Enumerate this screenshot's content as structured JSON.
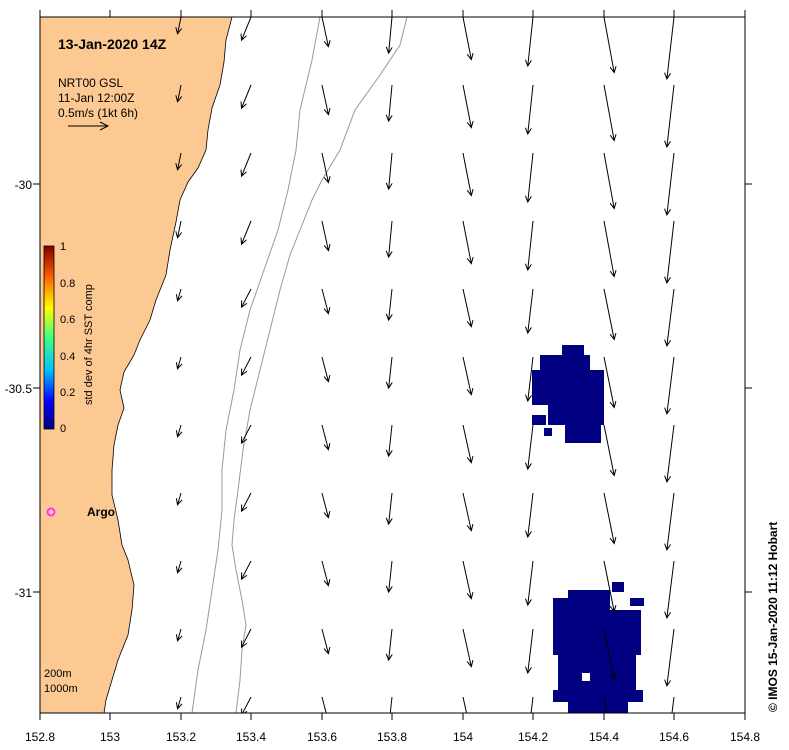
{
  "title": "13-Jan-2020 14Z",
  "legend": {
    "line1": "NRT00 GSL",
    "line2": "11-Jan 12:00Z",
    "scale_label": "0.5m/s (1kt 6h)"
  },
  "colorbar": {
    "label": "std dev of 4hr SST comp",
    "ticks": [
      "0",
      "0.2",
      "0.4",
      "0.6",
      "0.8",
      "1"
    ]
  },
  "float": {
    "label": "Argo",
    "color": "#ff33ff"
  },
  "isobaths": [
    "200m",
    "1000m"
  ],
  "credit": "© IMOS 15-Jan-2020 11:12 Hobart",
  "axes": {
    "x_ticks": [
      "152.8",
      "153",
      "153.2",
      "153.4",
      "153.6",
      "153.8",
      "154",
      "154.2",
      "154.4",
      "154.6",
      "154.8"
    ],
    "y_ticks": [
      "-30",
      "-30.5",
      "-31"
    ]
  },
  "colors": {
    "land": "#fdc993",
    "low_sst_patch": "#000080",
    "isobath": "#999999"
  }
}
